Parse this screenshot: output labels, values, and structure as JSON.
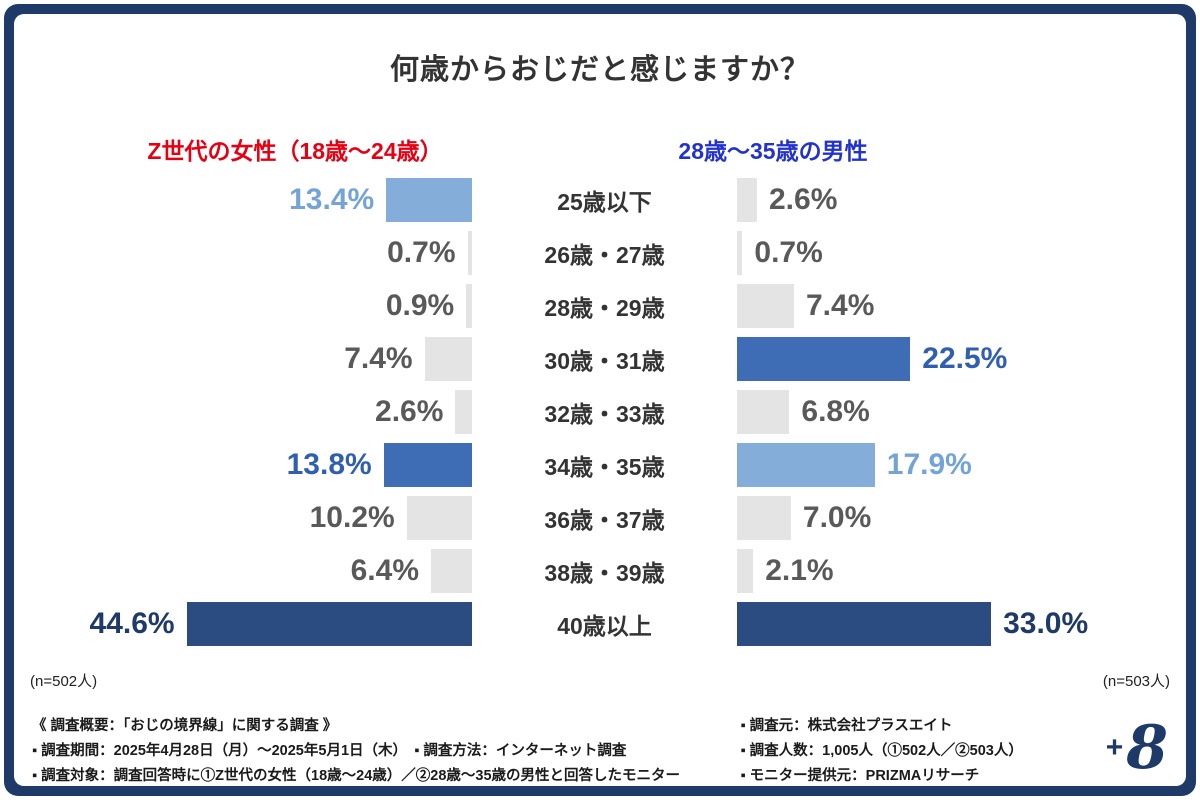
{
  "title": "何歳からおじだと感じますか？",
  "groups": {
    "left": {
      "label": "Z世代の女性（18歳〜24歳）",
      "color": "#e60012",
      "n_label": "(n=502人)"
    },
    "right": {
      "label": "28歳〜35歳の男性",
      "color": "#2233cc",
      "n_label": "(n=503人)"
    }
  },
  "palette": {
    "bar": {
      "gray": "#e4e4e4",
      "light": "#85add9",
      "mid": "#3e6db5",
      "dark": "#2b4c80"
    },
    "text": {
      "gray": "#595959",
      "light": "#74a3d6",
      "mid": "#2f5fae",
      "dark": "#1f3a68"
    }
  },
  "chart_data": {
    "type": "bar",
    "variant": "butterfly",
    "title": "何歳からおじだと感じますか？",
    "categories": [
      "25歳以下",
      "26歳・27歳",
      "28歳・29歳",
      "30歳・31歳",
      "32歳・33歳",
      "34歳・35歳",
      "36歳・37歳",
      "38歳・39歳",
      "40歳以上"
    ],
    "series": [
      {
        "name": "Z世代の女性（18歳〜24歳）",
        "side": "left",
        "n": 502,
        "values": [
          13.4,
          0.7,
          0.9,
          7.4,
          2.6,
          13.8,
          10.2,
          6.4,
          44.6
        ],
        "style": [
          "light",
          "gray",
          "gray",
          "gray",
          "gray",
          "mid",
          "gray",
          "gray",
          "dark"
        ]
      },
      {
        "name": "28歳〜35歳の男性",
        "side": "right",
        "n": 503,
        "values": [
          2.6,
          0.7,
          7.4,
          22.5,
          6.8,
          17.9,
          7.0,
          2.1,
          33.0
        ],
        "style": [
          "gray",
          "gray",
          "gray",
          "mid",
          "gray",
          "light",
          "gray",
          "gray",
          "dark"
        ]
      }
    ],
    "value_suffix": "%",
    "bar_scale": {
      "left": 6.4,
      "right": 7.7
    },
    "legend": "none",
    "grid": false
  },
  "footer": {
    "left": {
      "lines": [
        "《 調査概要：「おじの境界線」に関する調査 》",
        "▪ 調査期間：2025年4月28日（月）〜2025年5月1日（木）　▪ 調査方法：インターネット調査",
        "▪ 調査対象：調査回答時に①Z世代の女性（18歳〜24歳）／②28歳〜35歳の男性と回答したモニター"
      ]
    },
    "right": {
      "lines": [
        "▪ 調査元：株式会社プラスエイト",
        "▪ 調査人数：1,005人（①502人／②503人）",
        "▪ モニター提供元：PRIZMAリサーチ"
      ]
    }
  },
  "logo": {
    "plus": "+",
    "eight": "8",
    "color": "#1e3a68"
  },
  "frame": {
    "color": "#1e3a68"
  }
}
